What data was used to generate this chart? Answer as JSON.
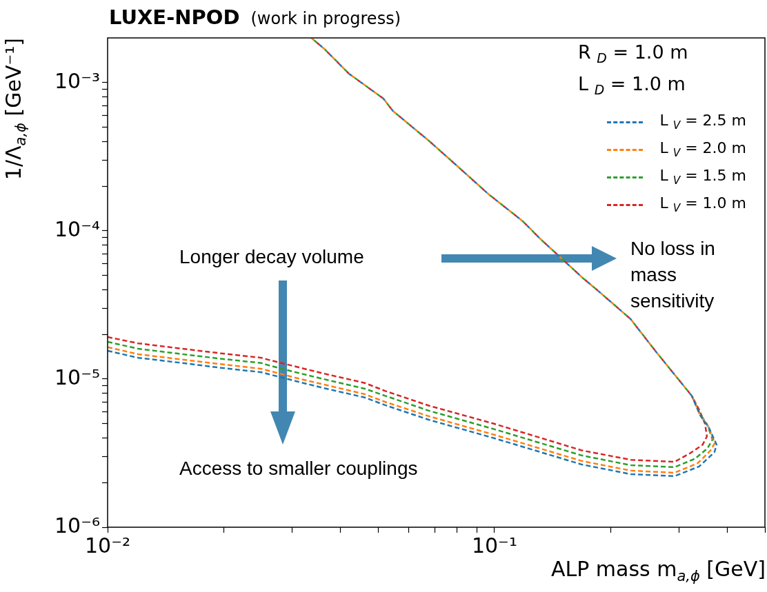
{
  "chart_data": {
    "type": "line",
    "title": "LUXE-NPOD",
    "subtitle": "(work in progress)",
    "xlabel": "ALP mass m$_{a,ϕ}$ [GeV]",
    "ylabel": "1/Λ$_{a,ϕ}$ [GeV⁻¹]",
    "log": "xy",
    "grid": false,
    "legend": "top right",
    "marker": "none",
    "line_style": "dashed",
    "xlim": [
      0.01,
      0.5
    ],
    "ylim": [
      1e-06,
      0.002
    ],
    "xticks": [
      {
        "value": 0.01,
        "label": "10⁻²"
      },
      {
        "value": 0.02,
        "label": null
      },
      {
        "value": 0.03,
        "label": null
      },
      {
        "value": 0.04,
        "label": null
      },
      {
        "value": 0.05,
        "label": null
      },
      {
        "value": 0.06,
        "label": null
      },
      {
        "value": 0.07,
        "label": null
      },
      {
        "value": 0.08,
        "label": null
      },
      {
        "value": 0.09,
        "label": null
      },
      {
        "value": 0.1,
        "label": "10⁻¹"
      },
      {
        "value": 0.2,
        "label": null
      },
      {
        "value": 0.3,
        "label": null
      },
      {
        "value": 0.4,
        "label": null
      },
      {
        "value": 0.5,
        "label": null
      }
    ],
    "yticks": [
      {
        "value": 1e-06,
        "label": "10⁻⁶"
      },
      {
        "value": 2e-06,
        "label": null
      },
      {
        "value": 3e-06,
        "label": null
      },
      {
        "value": 4e-06,
        "label": null
      },
      {
        "value": 5e-06,
        "label": null
      },
      {
        "value": 6e-06,
        "label": null
      },
      {
        "value": 7e-06,
        "label": null
      },
      {
        "value": 8e-06,
        "label": null
      },
      {
        "value": 9e-06,
        "label": null
      },
      {
        "value": 1e-05,
        "label": "10⁻⁵"
      },
      {
        "value": 2e-05,
        "label": null
      },
      {
        "value": 3e-05,
        "label": null
      },
      {
        "value": 4e-05,
        "label": null
      },
      {
        "value": 5e-05,
        "label": null
      },
      {
        "value": 6e-05,
        "label": null
      },
      {
        "value": 7e-05,
        "label": null
      },
      {
        "value": 8e-05,
        "label": null
      },
      {
        "value": 9e-05,
        "label": null
      },
      {
        "value": 0.0001,
        "label": "10⁻⁴"
      },
      {
        "value": 0.0002,
        "label": null
      },
      {
        "value": 0.0003,
        "label": null
      },
      {
        "value": 0.0004,
        "label": null
      },
      {
        "value": 0.0005,
        "label": null
      },
      {
        "value": 0.0006,
        "label": null
      },
      {
        "value": 0.0007,
        "label": null
      },
      {
        "value": 0.0008,
        "label": null
      },
      {
        "value": 0.0009,
        "label": null
      },
      {
        "value": 0.001,
        "label": "10⁻³"
      }
    ],
    "annotations": [
      "R $_{D}$ = 1.0 m",
      "L $_{D}$ = 1.0 m",
      "Longer decay volume",
      "No loss in mass sensitivity",
      "Access to smaller couplings"
    ],
    "series": [
      {
        "name": "L $_{V}$ = 2.5 m",
        "color": "#1f77b4",
        "x": [
          0.01,
          0.012,
          0.0153,
          0.0196,
          0.025,
          0.026,
          0.0315,
          0.0361,
          0.0462,
          0.0522,
          0.0678,
          0.1,
          0.168,
          0.225,
          0.292,
          0.338,
          0.37,
          0.375,
          0.358,
          0.34,
          0.3235,
          0.2603,
          0.2247,
          0.1833,
          0.1694,
          0.1315,
          0.1183,
          0.0964,
          0.0808,
          0.0678,
          0.0546,
          0.0516,
          0.042,
          0.0363,
          0.0336
        ],
        "values": [
          1.55e-05,
          1.39e-05,
          1.29e-05,
          1.19e-05,
          1.11e-05,
          1.08e-05,
          9.5e-06,
          8.7e-06,
          7.5e-06,
          6.66e-06,
          5.3e-06,
          3.98e-06,
          2.65e-06,
          2.28e-06,
          2.21e-06,
          2.57e-06,
          3.2e-06,
          3.6e-06,
          4.7e-06,
          5.7e-06,
          7.7e-06,
          1.55e-05,
          2.54e-05,
          4.03e-05,
          4.78e-05,
          8.79e-05,
          0.000116,
          0.000177,
          0.000268,
          0.000403,
          0.000644,
          0.00078,
          0.00115,
          0.00169,
          0.002
        ]
      },
      {
        "name": "L $_{V}$ = 2.0 m",
        "color": "#ff7f0e",
        "x": [
          0.01,
          0.012,
          0.0153,
          0.0196,
          0.025,
          0.026,
          0.0315,
          0.0361,
          0.0462,
          0.0522,
          0.0678,
          0.1,
          0.168,
          0.225,
          0.292,
          0.335,
          0.362,
          0.371,
          0.357,
          0.34,
          0.3235,
          0.2603,
          0.2247,
          0.1833,
          0.1694,
          0.1315,
          0.1183,
          0.0964,
          0.0808,
          0.0678,
          0.0546,
          0.0516,
          0.042,
          0.0363,
          0.0336
        ],
        "values": [
          1.64e-05,
          1.47e-05,
          1.36e-05,
          1.26e-05,
          1.17e-05,
          1.14e-05,
          1e-05,
          9.2e-06,
          7.9e-06,
          7e-06,
          5.6e-06,
          4.2e-06,
          2.8e-06,
          2.41e-06,
          2.33e-06,
          2.7e-06,
          3.3e-06,
          3.7e-06,
          4.8e-06,
          5.7e-06,
          7.7e-06,
          1.55e-05,
          2.54e-05,
          4.03e-05,
          4.78e-05,
          8.79e-05,
          0.000116,
          0.000177,
          0.000268,
          0.000403,
          0.000644,
          0.00078,
          0.00115,
          0.00169,
          0.002
        ]
      },
      {
        "name": "L $_{V}$ = 1.5 m",
        "color": "#2ca02c",
        "x": [
          0.01,
          0.012,
          0.0153,
          0.0196,
          0.025,
          0.026,
          0.0315,
          0.0361,
          0.0462,
          0.0522,
          0.0678,
          0.1,
          0.168,
          0.225,
          0.292,
          0.33,
          0.355,
          0.366,
          0.355,
          0.34,
          0.3235,
          0.2603,
          0.2247,
          0.1833,
          0.1694,
          0.1315,
          0.1183,
          0.0964,
          0.0808,
          0.0678,
          0.0546,
          0.0516,
          0.042,
          0.0363,
          0.0336
        ],
        "values": [
          1.78e-05,
          1.6e-05,
          1.48e-05,
          1.37e-05,
          1.28e-05,
          1.24e-05,
          1.09e-05,
          1e-05,
          8.6e-06,
          7.7e-06,
          6.1e-06,
          4.58e-06,
          3.05e-06,
          2.62e-06,
          2.54e-06,
          2.9e-06,
          3.4e-06,
          3.9e-06,
          4.9e-06,
          5.8e-06,
          7.7e-06,
          1.55e-05,
          2.54e-05,
          4.03e-05,
          4.78e-05,
          8.79e-05,
          0.000116,
          0.000177,
          0.000268,
          0.000403,
          0.000644,
          0.00078,
          0.00115,
          0.00169,
          0.002
        ]
      },
      {
        "name": "L $_{V}$ = 1.0 m",
        "color": "#d62728",
        "x": [
          0.01,
          0.012,
          0.0153,
          0.0196,
          0.025,
          0.026,
          0.0315,
          0.0361,
          0.0462,
          0.0522,
          0.0678,
          0.1,
          0.168,
          0.225,
          0.292,
          0.32,
          0.345,
          0.354,
          0.35,
          0.338,
          0.3235,
          0.2603,
          0.2247,
          0.1833,
          0.1694,
          0.1315,
          0.1183,
          0.0964,
          0.0808,
          0.0678,
          0.0546,
          0.0516,
          0.042,
          0.0363,
          0.0336
        ],
        "values": [
          1.92e-05,
          1.74e-05,
          1.61e-05,
          1.49e-05,
          1.39e-05,
          1.35e-05,
          1.19e-05,
          1.09e-05,
          9.4e-06,
          8.3e-06,
          6.6e-06,
          4.98e-06,
          3.3e-06,
          2.85e-06,
          2.76e-06,
          3.15e-06,
          3.6e-06,
          4.1e-06,
          5e-06,
          6.2e-06,
          7.7e-06,
          1.55e-05,
          2.54e-05,
          4.03e-05,
          4.78e-05,
          8.79e-05,
          0.000116,
          0.000177,
          0.000268,
          0.000403,
          0.000644,
          0.00078,
          0.00115,
          0.00169,
          0.002
        ]
      }
    ]
  }
}
